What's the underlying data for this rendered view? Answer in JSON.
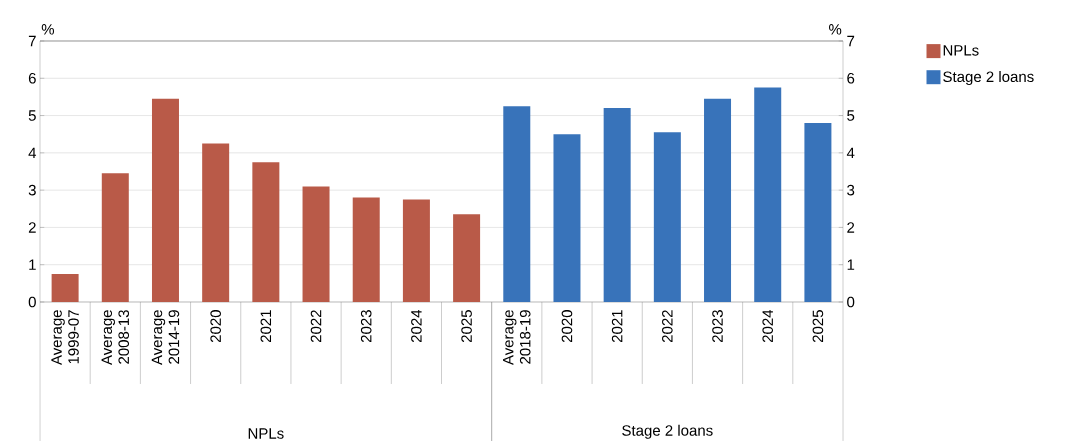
{
  "chart_data": {
    "type": "bar",
    "categories": [
      "Average 1999-07",
      "Average 2008-13",
      "Average 2014-19",
      "2020",
      "2021",
      "2022",
      "2023",
      "2024",
      "2025",
      "Average 2018-19",
      "2020",
      "2021",
      "2022",
      "2023",
      "2024",
      "2025"
    ],
    "series": [
      {
        "name": "NPLs",
        "color": "#b95a48",
        "values": [
          0.75,
          3.45,
          5.45,
          4.25,
          3.75,
          3.1,
          2.8,
          2.75,
          2.35,
          null,
          null,
          null,
          null,
          null,
          null,
          null
        ]
      },
      {
        "name": "Stage 2 loans",
        "color": "#3873ba",
        "values": [
          null,
          null,
          null,
          null,
          null,
          null,
          null,
          null,
          null,
          5.25,
          4.5,
          5.2,
          4.55,
          5.45,
          5.75,
          4.8
        ]
      }
    ],
    "ylabel": "%",
    "y2label": "%",
    "ylim": [
      0,
      7
    ],
    "yticks": [
      0,
      1,
      2,
      3,
      4,
      5,
      6,
      7
    ],
    "y2lim": [
      0,
      7
    ],
    "y2ticks": [
      0,
      1,
      2,
      3,
      4,
      5,
      6,
      7
    ],
    "annotations": [
      "NPLs",
      "Stage 2 loans"
    ],
    "grid": "y",
    "legend": "top right"
  }
}
